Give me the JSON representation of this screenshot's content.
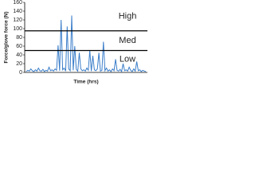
{
  "chart_data": {
    "type": "line",
    "y_label": "Force/glove force (N)",
    "x_label": "Time (hrs)",
    "categories": [
      null,
      null,
      null,
      null,
      null,
      null,
      null,
      null,
      null,
      null,
      null,
      null,
      null,
      null,
      null,
      null,
      null,
      null,
      null,
      null,
      null,
      null,
      null,
      null,
      null,
      null,
      null,
      null,
      null,
      null,
      null,
      null,
      null,
      null,
      null,
      null,
      null,
      null,
      null,
      null,
      null,
      null,
      null,
      null,
      null,
      null,
      null,
      null,
      null,
      null,
      null,
      null,
      null,
      null,
      null,
      null,
      null,
      null,
      null,
      null,
      null,
      null,
      null,
      null,
      null,
      null,
      null,
      null,
      null,
      null,
      null,
      null,
      null,
      null,
      null,
      null,
      null,
      null,
      null,
      null
    ],
    "series": [
      {
        "name": "Force",
        "color": "#3a7dc9",
        "values": [
          2,
          5,
          3,
          8,
          4,
          2,
          6,
          3,
          10,
          4,
          3,
          7,
          2,
          5,
          3,
          12,
          4,
          6,
          3,
          8,
          5,
          62,
          4,
          120,
          6,
          10,
          3,
          105,
          8,
          4,
          130,
          5,
          60,
          7,
          3,
          45,
          8,
          4,
          6,
          3,
          10,
          5,
          50,
          3,
          38,
          6,
          4,
          8,
          45,
          3,
          5,
          70,
          4,
          10,
          3,
          6,
          2,
          8,
          4,
          30,
          5,
          3,
          7,
          2,
          20,
          4,
          6,
          3,
          12,
          5,
          2,
          8,
          3,
          25,
          4,
          6,
          2,
          5,
          3,
          2
        ]
      }
    ],
    "ylim": [
      0,
      160
    ],
    "yticks": [
      0,
      20,
      40,
      60,
      80,
      100,
      120,
      140,
      160
    ],
    "thresholds": [
      50,
      95
    ],
    "zones": [
      "Low",
      "Med",
      "High"
    ],
    "zone_color": "#000000"
  }
}
